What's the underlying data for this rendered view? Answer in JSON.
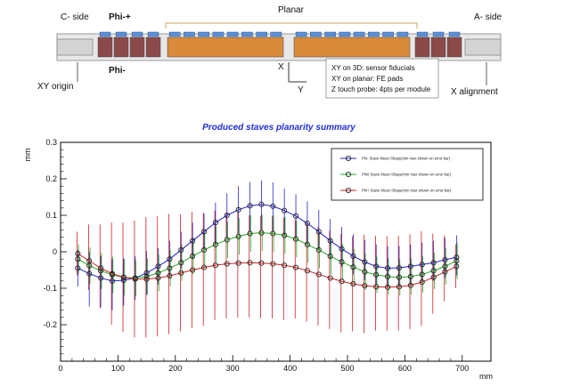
{
  "diagram": {
    "c_side": "C- side",
    "phi_plus": "Phi-+",
    "planar": "Planar",
    "a_side": "A- side",
    "phi_minus": "Phi-",
    "xy_origin": "XY origin",
    "axis_x": "X",
    "axis_y": "Y",
    "x_alignment": "X alignment",
    "legend_lines": [
      "XY on 3D: sensor fiducials",
      "XY on planar: FE pads",
      "Z touch probe: 4pts per module"
    ],
    "colors": {
      "module_red": "#8b4a4a",
      "module_orange": "#d98a3a",
      "pad_blue": "#5b8fd6",
      "stave_grey": "#bfbfbf"
    }
  },
  "chart_data": {
    "type": "line",
    "title": "Produced staves planarity summary",
    "xlabel": "mm",
    "ylabel": "mm",
    "xlim": [
      0,
      750
    ],
    "ylim": [
      -0.3,
      0.3
    ],
    "xticks": [
      0,
      100,
      200,
      300,
      400,
      500,
      600,
      700
    ],
    "xtick_labels": [
      "0",
      "100",
      "200",
      "300",
      "400",
      "500",
      "600",
      "700"
    ],
    "yticks": [
      -0.2,
      -0.1,
      0,
      0.1,
      0.2,
      0.3
    ],
    "ytick_labels": [
      "-0.2",
      "-0.1",
      "0",
      "0.1",
      "0.2",
      "0.3"
    ],
    "grid": false,
    "legend_position": "top-right",
    "x": [
      30,
      50,
      70,
      90,
      110,
      130,
      150,
      170,
      190,
      210,
      230,
      250,
      270,
      290,
      310,
      330,
      350,
      370,
      390,
      410,
      430,
      450,
      470,
      490,
      510,
      530,
      550,
      570,
      590,
      610,
      630,
      650,
      670,
      690
    ],
    "series": [
      {
        "name": "Phi- Stave Mean Shape(min max shown on error bar)",
        "color": "#2222cc",
        "values": [
          -0.045,
          -0.06,
          -0.072,
          -0.08,
          -0.078,
          -0.072,
          -0.058,
          -0.04,
          -0.02,
          0.005,
          0.03,
          0.055,
          0.08,
          0.1,
          0.115,
          0.126,
          0.13,
          0.125,
          0.113,
          0.098,
          0.078,
          0.055,
          0.03,
          0.008,
          -0.012,
          -0.028,
          -0.04,
          -0.045,
          -0.044,
          -0.04,
          -0.035,
          -0.03,
          -0.022,
          -0.015
        ],
        "err_low": [
          0.05,
          0.09,
          0.08,
          0.08,
          0.07,
          0.06,
          0.06,
          0.05,
          0.05,
          0.05,
          0.05,
          0.05,
          0.06,
          0.06,
          0.065,
          0.07,
          0.07,
          0.07,
          0.07,
          0.06,
          0.06,
          0.05,
          0.05,
          0.05,
          0.05,
          0.05,
          0.05,
          0.05,
          0.05,
          0.05,
          0.05,
          0.05,
          0.05,
          0.05
        ],
        "err_high": [
          0.05,
          0.06,
          0.06,
          0.06,
          0.06,
          0.06,
          0.06,
          0.05,
          0.05,
          0.05,
          0.05,
          0.05,
          0.055,
          0.06,
          0.065,
          0.065,
          0.065,
          0.065,
          0.06,
          0.06,
          0.06,
          0.06,
          0.06,
          0.06,
          0.06,
          0.06,
          0.06,
          0.06,
          0.06,
          0.06,
          0.06,
          0.06,
          0.06,
          0.06
        ]
      },
      {
        "name": "Phi0 Stave Mean Shape(min max shown on error bar)",
        "color": "#22aa22",
        "values": [
          -0.02,
          -0.038,
          -0.052,
          -0.063,
          -0.07,
          -0.072,
          -0.068,
          -0.058,
          -0.045,
          -0.03,
          -0.012,
          0.005,
          0.02,
          0.033,
          0.042,
          0.05,
          0.052,
          0.05,
          0.045,
          0.035,
          0.02,
          0.005,
          -0.012,
          -0.028,
          -0.042,
          -0.055,
          -0.063,
          -0.068,
          -0.07,
          -0.068,
          -0.062,
          -0.052,
          -0.04,
          -0.025
        ],
        "err_low": [
          0.04,
          0.05,
          0.05,
          0.05,
          0.05,
          0.05,
          0.05,
          0.05,
          0.05,
          0.05,
          0.05,
          0.05,
          0.05,
          0.05,
          0.05,
          0.05,
          0.05,
          0.05,
          0.05,
          0.05,
          0.05,
          0.05,
          0.05,
          0.05,
          0.05,
          0.05,
          0.05,
          0.05,
          0.05,
          0.05,
          0.05,
          0.05,
          0.05,
          0.05
        ],
        "err_high": [
          0.04,
          0.05,
          0.05,
          0.05,
          0.05,
          0.05,
          0.05,
          0.05,
          0.05,
          0.05,
          0.05,
          0.05,
          0.05,
          0.05,
          0.05,
          0.05,
          0.05,
          0.05,
          0.05,
          0.05,
          0.05,
          0.05,
          0.05,
          0.05,
          0.05,
          0.05,
          0.05,
          0.05,
          0.05,
          0.05,
          0.05,
          0.05,
          0.05,
          0.05
        ]
      },
      {
        "name": "Phi+ Stave Mean Shape(min max shown on error bar)",
        "color": "#cc2222",
        "values": [
          -0.005,
          -0.025,
          -0.045,
          -0.06,
          -0.07,
          -0.075,
          -0.075,
          -0.072,
          -0.066,
          -0.058,
          -0.05,
          -0.043,
          -0.037,
          -0.033,
          -0.031,
          -0.03,
          -0.031,
          -0.033,
          -0.037,
          -0.043,
          -0.052,
          -0.062,
          -0.072,
          -0.081,
          -0.088,
          -0.093,
          -0.096,
          -0.097,
          -0.096,
          -0.092,
          -0.083,
          -0.07,
          -0.055,
          -0.04
        ],
        "err_low": [
          0.06,
          0.08,
          0.11,
          0.14,
          0.15,
          0.16,
          0.16,
          0.16,
          0.16,
          0.16,
          0.16,
          0.16,
          0.15,
          0.15,
          0.15,
          0.15,
          0.15,
          0.15,
          0.15,
          0.14,
          0.14,
          0.14,
          0.14,
          0.14,
          0.13,
          0.13,
          0.12,
          0.12,
          0.12,
          0.12,
          0.12,
          0.1,
          0.08,
          0.06
        ],
        "err_high": [
          0.06,
          0.1,
          0.12,
          0.14,
          0.15,
          0.16,
          0.17,
          0.17,
          0.17,
          0.16,
          0.16,
          0.15,
          0.15,
          0.14,
          0.14,
          0.13,
          0.13,
          0.13,
          0.13,
          0.13,
          0.13,
          0.13,
          0.13,
          0.13,
          0.13,
          0.14,
          0.14,
          0.14,
          0.14,
          0.14,
          0.14,
          0.12,
          0.1,
          0.06
        ]
      }
    ]
  }
}
